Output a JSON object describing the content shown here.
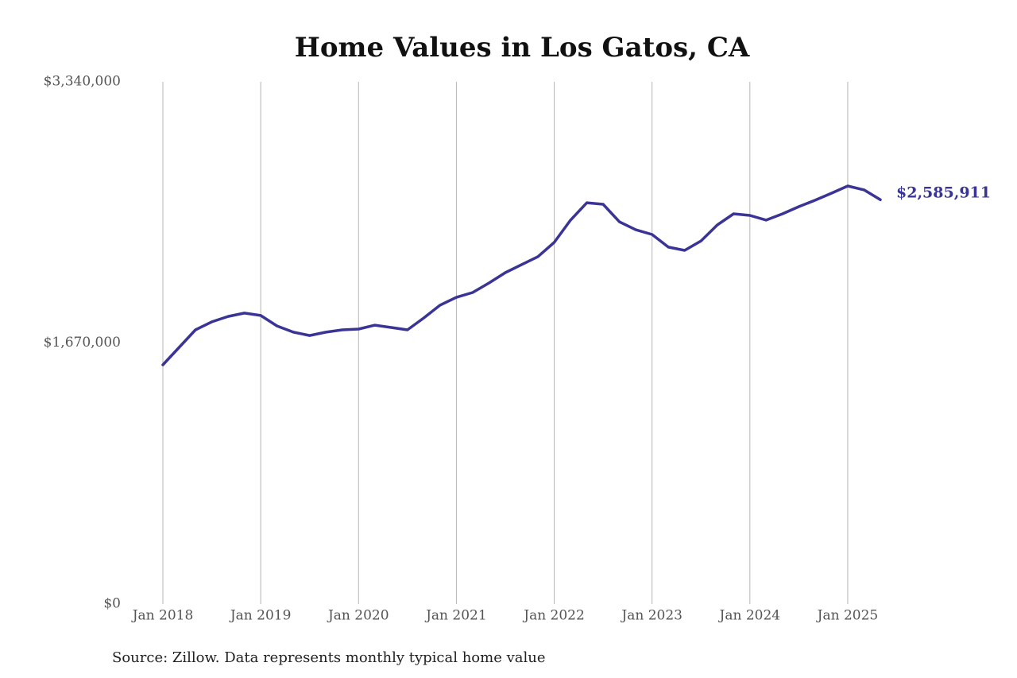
{
  "chart_data": {
    "type": "line",
    "title": "Home Values in Los Gatos, CA",
    "source": "Source: Zillow. Data represents monthly typical home value",
    "x": [
      "2018-01",
      "2018-03",
      "2018-05",
      "2018-07",
      "2018-09",
      "2018-11",
      "2019-01",
      "2019-03",
      "2019-05",
      "2019-07",
      "2019-09",
      "2019-11",
      "2020-01",
      "2020-03",
      "2020-05",
      "2020-07",
      "2020-09",
      "2020-11",
      "2021-01",
      "2021-03",
      "2021-05",
      "2021-07",
      "2021-09",
      "2021-11",
      "2022-01",
      "2022-03",
      "2022-05",
      "2022-07",
      "2022-09",
      "2022-11",
      "2023-01",
      "2023-03",
      "2023-05",
      "2023-07",
      "2023-09",
      "2023-11",
      "2024-01",
      "2024-03",
      "2024-05",
      "2024-07",
      "2024-09",
      "2024-11",
      "2025-01",
      "2025-03",
      "2025-05"
    ],
    "series": [
      {
        "name": "Home value",
        "color": "#3a3497",
        "values": [
          1530000,
          1642000,
          1754000,
          1805000,
          1840000,
          1861000,
          1846000,
          1779000,
          1739000,
          1718000,
          1739000,
          1754000,
          1759000,
          1784000,
          1769000,
          1754000,
          1830000,
          1912000,
          1962000,
          1993000,
          2054000,
          2120000,
          2171000,
          2222000,
          2313000,
          2456000,
          2567000,
          2557000,
          2445000,
          2394000,
          2364000,
          2283000,
          2262000,
          2323000,
          2425000,
          2496000,
          2486000,
          2456000,
          2496000,
          2542000,
          2583000,
          2628000,
          2674000,
          2649000,
          2585911
        ],
        "value_labels": [
          null,
          null,
          null,
          null,
          null,
          null,
          null,
          null,
          null,
          null,
          null,
          null,
          null,
          null,
          null,
          null,
          null,
          null,
          null,
          null,
          null,
          null,
          null,
          null,
          null,
          null,
          null,
          null,
          null,
          null,
          null,
          null,
          null,
          null,
          null,
          null,
          null,
          null,
          null,
          null,
          null,
          null,
          null,
          null,
          "$2,585,911"
        ]
      }
    ],
    "xlim": [
      "2018-01",
      "2025-05"
    ],
    "xticks": [
      {
        "value": "2018-01",
        "label": "Jan 2018"
      },
      {
        "value": "2019-01",
        "label": "Jan 2019"
      },
      {
        "value": "2020-01",
        "label": "Jan 2020"
      },
      {
        "value": "2021-01",
        "label": "Jan 2021"
      },
      {
        "value": "2022-01",
        "label": "Jan 2022"
      },
      {
        "value": "2023-01",
        "label": "Jan 2023"
      },
      {
        "value": "2024-01",
        "label": "Jan 2024"
      },
      {
        "value": "2025-01",
        "label": "Jan 2025"
      }
    ],
    "ylim": [
      0,
      3340000
    ],
    "yticks": [
      {
        "value": 0,
        "label": "$0"
      },
      {
        "value": 1670000,
        "label": "$1,670,000"
      },
      {
        "value": 3340000,
        "label": "$3,340,000"
      }
    ],
    "grid": "x"
  }
}
